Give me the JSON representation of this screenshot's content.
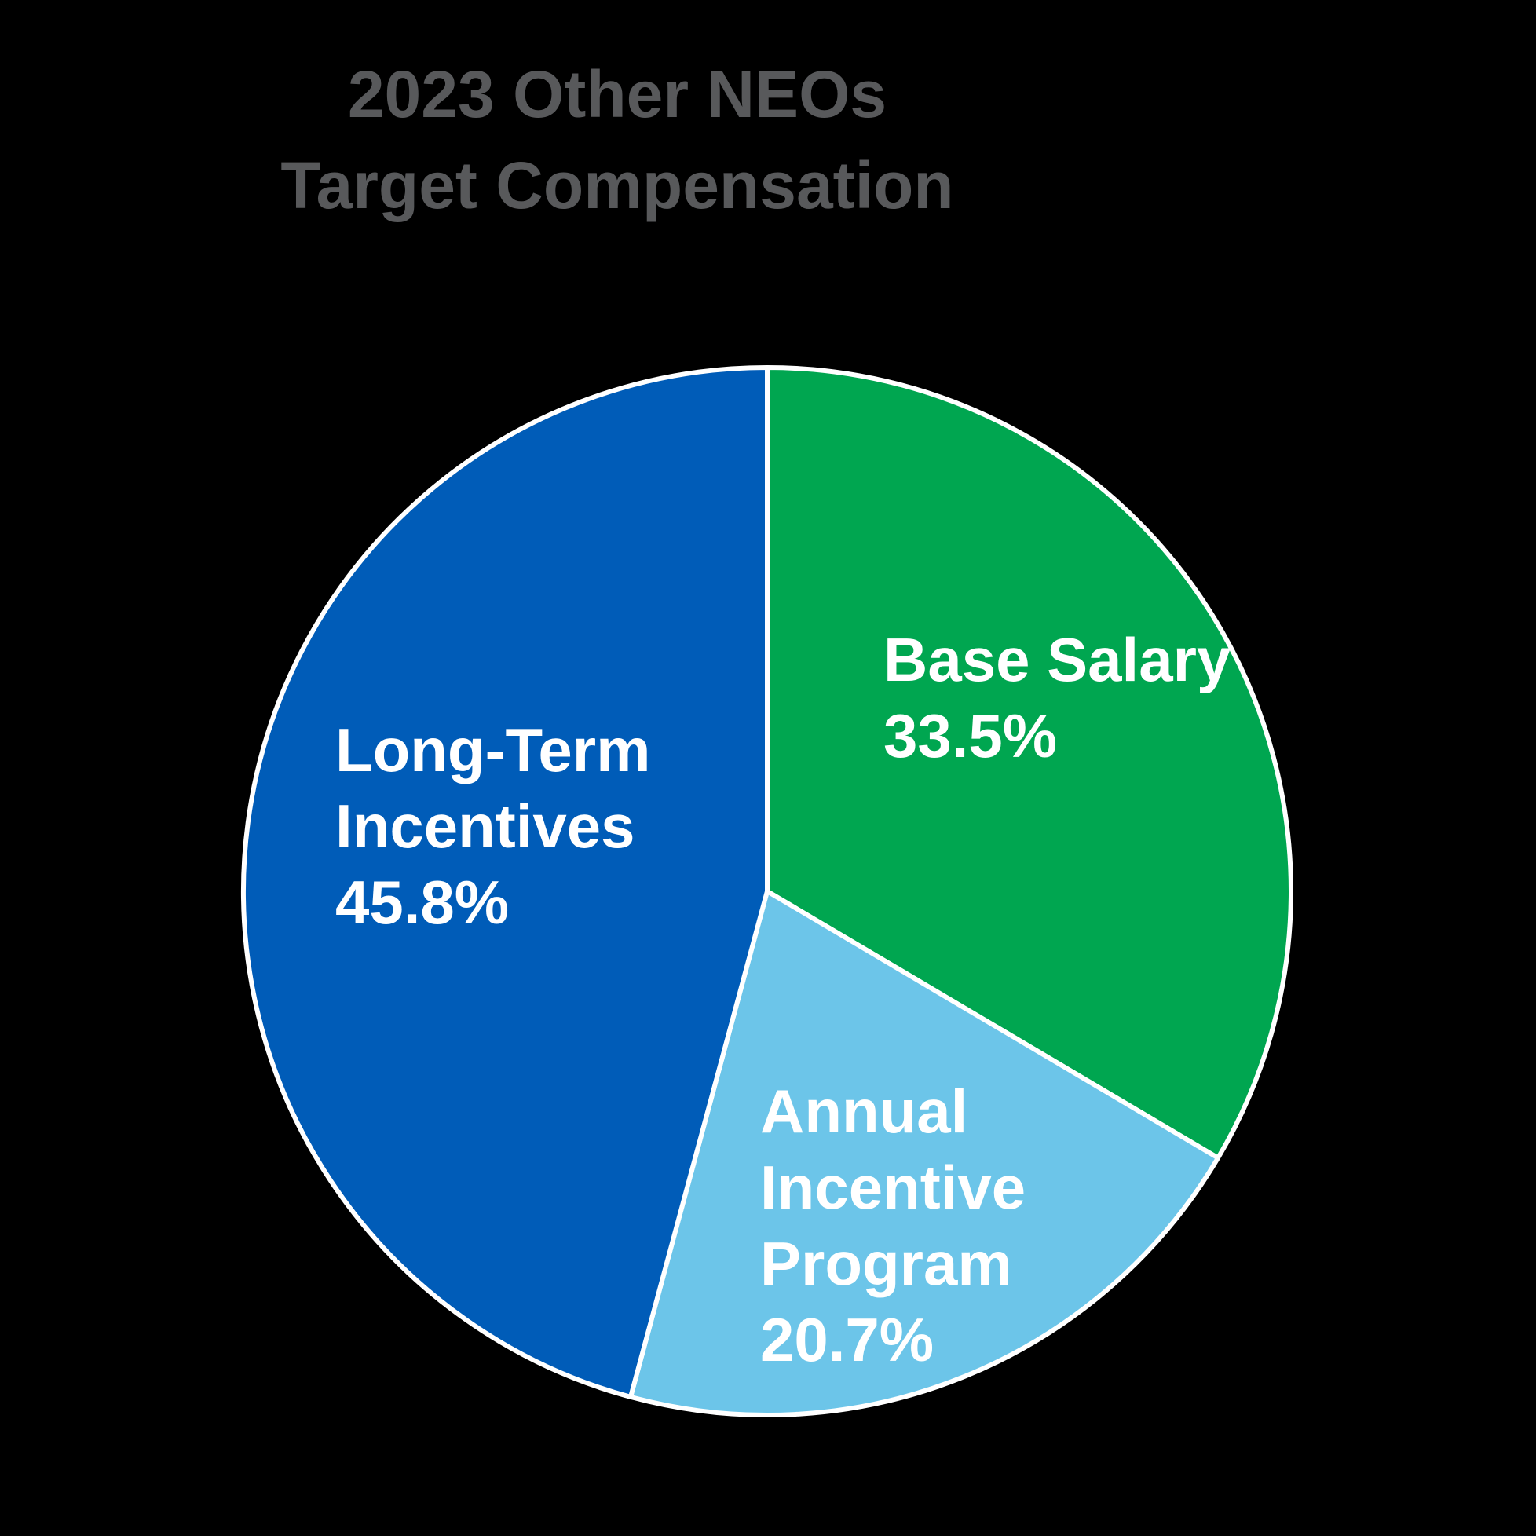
{
  "background_color": "#000000",
  "title": {
    "line1": "2023 Other NEOs",
    "line2": "Target Compensation",
    "color": "#58595B"
  },
  "chart_data": {
    "type": "pie",
    "title": "2023 Other NEOs Target Compensation",
    "start_angle_deg": 0,
    "direction": "clockwise",
    "legend": "none",
    "stroke_color": "#FFFFFF",
    "label_color": "#FFFFFF",
    "slices": [
      {
        "label": "Base Salary",
        "value": 33.5,
        "pct_text": "33.5%",
        "color": "#00A650",
        "label_lines": [
          "Base Salary",
          "33.5%"
        ]
      },
      {
        "label": "Annual Incentive Program",
        "value": 20.7,
        "pct_text": "20.7%",
        "color": "#6CC5E9",
        "label_lines": [
          "Annual",
          "Incentive",
          "Program",
          "20.7%"
        ]
      },
      {
        "label": "Long-Term Incentives",
        "value": 45.8,
        "pct_text": "45.8%",
        "color": "#005CB8",
        "label_lines": [
          "Long-Term",
          "Incentives",
          "45.8%"
        ]
      }
    ]
  }
}
